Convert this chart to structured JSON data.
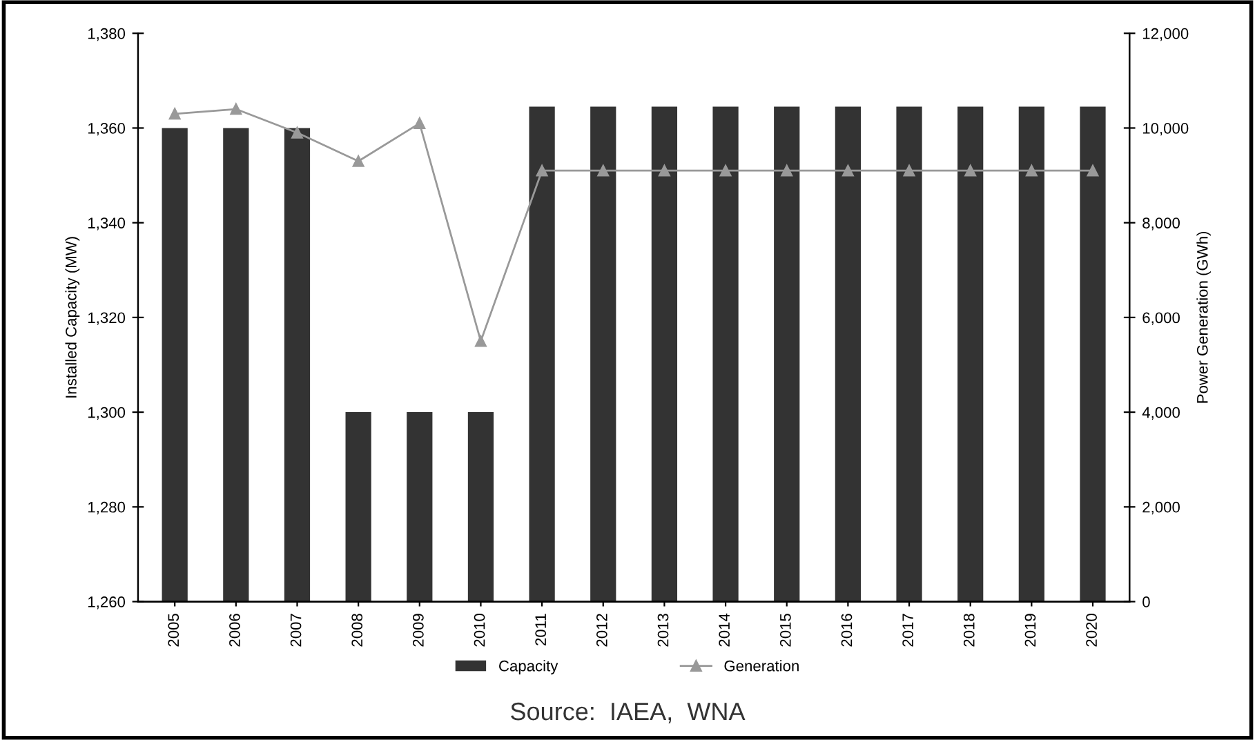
{
  "chart_data": {
    "type": "bar",
    "ylabel": "Installed Capacity (MW)",
    "y2label": "Power Generation (GWh)",
    "categories": [
      "2005",
      "2006",
      "2007",
      "2008",
      "2009",
      "2010",
      "2011",
      "2012",
      "2013",
      "2014",
      "2015",
      "2016",
      "2017",
      "2018",
      "2019",
      "2020"
    ],
    "series": [
      {
        "name": "Capacity",
        "color": "#333333",
        "values": [
          1360,
          1360,
          1360,
          1300,
          1300,
          1300,
          1364.5,
          1364.5,
          1364.5,
          1364.5,
          1364.5,
          1364.5,
          1364.5,
          1364.5,
          1364.5,
          1364.5
        ]
      },
      {
        "name": "Generation",
        "type": "line",
        "axis": "y2",
        "color": "#999999",
        "marker": "triangle",
        "values": [
          10300,
          10400,
          9900,
          9300,
          10100,
          5500,
          9100,
          9100,
          9100,
          9100,
          9100,
          9100,
          9100,
          9100,
          9100,
          9100
        ]
      }
    ],
    "ylim": [
      1260,
      1380
    ],
    "yticks": [
      {
        "value": 1260,
        "label": "1,260"
      },
      {
        "value": 1280,
        "label": "1,280"
      },
      {
        "value": 1300,
        "label": "1,300"
      },
      {
        "value": 1320,
        "label": "1,320"
      },
      {
        "value": 1340,
        "label": "1,340"
      },
      {
        "value": 1360,
        "label": "1,360"
      },
      {
        "value": 1380,
        "label": "1,380"
      }
    ],
    "y2lim": [
      0,
      12000
    ],
    "y2ticks": [
      0,
      {
        "value": 2000,
        "label": "2,000"
      },
      {
        "value": 4000,
        "label": "4,000"
      },
      {
        "value": 6000,
        "label": "6,000"
      },
      {
        "value": 8000,
        "label": "8,000"
      },
      {
        "value": 10000,
        "label": "10,000"
      },
      {
        "value": 12000,
        "label": "12,000"
      }
    ],
    "grid": false,
    "legend": "bottom",
    "annotations": [
      "Source:  IAEA,  WNA"
    ]
  }
}
